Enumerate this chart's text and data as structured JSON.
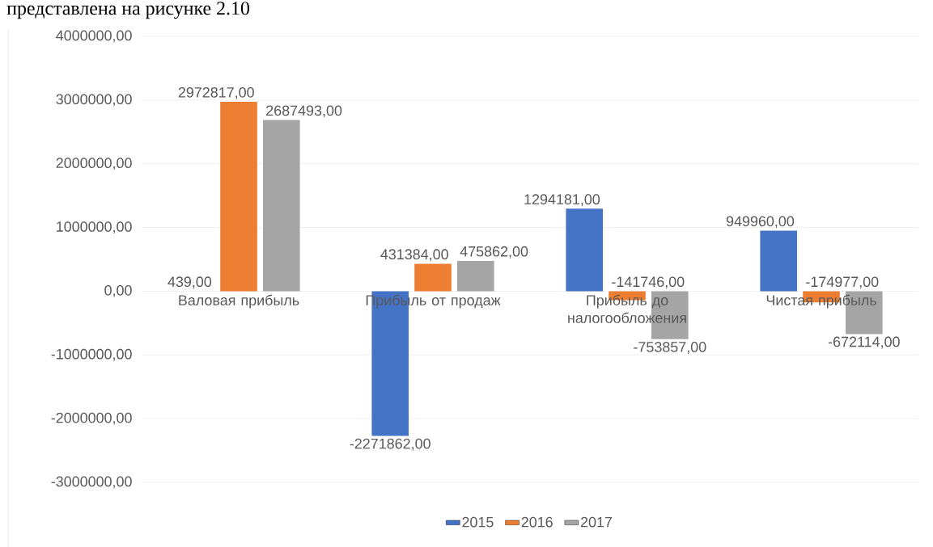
{
  "chart_data": {
    "type": "bar",
    "annotations": [
      "представлена на рисунке 2.10"
    ],
    "categories": [
      "Валовая прибыль",
      "Прибыль от продаж",
      "Прибыль до налогообложения",
      "Чистая прибыль"
    ],
    "series": [
      {
        "name": "2015",
        "color": "#4472c4",
        "values": [
          439,
          -2271862,
          1294181,
          949960
        ],
        "value_labels": [
          "439,00",
          "-2271862,00",
          "1294181,00",
          "949960,00"
        ]
      },
      {
        "name": "2016",
        "color": "#ed7d31",
        "values": [
          2972817,
          431384,
          -141746,
          -174977
        ],
        "value_labels": [
          "2972817,00",
          "431384,00",
          "-141746,00",
          "-174977,00"
        ]
      },
      {
        "name": "2017",
        "color": "#a5a5a5",
        "values": [
          2687493,
          475862,
          -753857,
          -672114
        ],
        "value_labels": [
          "2687493,00",
          "475862,00",
          "-753857,00",
          "-672114,00"
        ]
      }
    ],
    "ylim": [
      -3000000,
      4000000
    ],
    "yticks": [
      {
        "value": -3000000,
        "label": "-3000000,00"
      },
      {
        "value": -2000000,
        "label": "-2000000,00"
      },
      {
        "value": -1000000,
        "label": "-1000000,00"
      },
      {
        "value": 0,
        "label": "0,00"
      },
      {
        "value": 1000000,
        "label": "1000000,00"
      },
      {
        "value": 2000000,
        "label": "2000000,00"
      },
      {
        "value": 3000000,
        "label": "3000000,00"
      },
      {
        "value": 4000000,
        "label": "4000000,00"
      }
    ],
    "grid": "y",
    "legend": "bottom"
  }
}
